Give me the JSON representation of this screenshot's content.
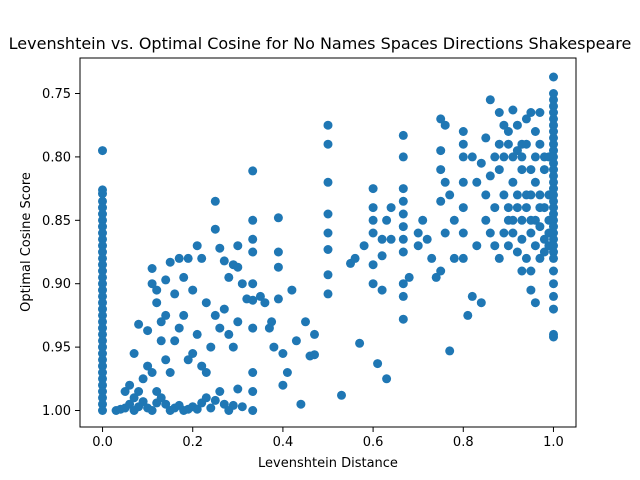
{
  "chart_data": {
    "type": "scatter",
    "title": "Levenshtein vs. Optimal Cosine for No Names Spaces Directions Shakespeare",
    "xlabel": "Levenshtein Distance",
    "ylabel": "Optimal Cosine Score",
    "xlim": [
      -0.05,
      1.05
    ],
    "ylim": [
      1.013,
      0.722
    ],
    "y_inverted": true,
    "xticks": [
      0.0,
      0.2,
      0.4,
      0.6,
      0.8,
      1.0
    ],
    "xtick_labels": [
      "0.0",
      "0.2",
      "0.4",
      "0.6",
      "0.8",
      "1.0"
    ],
    "yticks": [
      0.75,
      0.8,
      0.85,
      0.9,
      0.95,
      1.0
    ],
    "ytick_labels": [
      "0.75",
      "0.80",
      "0.85",
      "0.90",
      "0.95",
      "1.00"
    ],
    "grid": false,
    "marker_color": "#1f77b4",
    "points": [
      [
        0.0,
        0.795
      ],
      [
        0.0,
        0.826
      ],
      [
        0.0,
        0.829
      ],
      [
        0.0,
        0.835
      ],
      [
        0.0,
        0.84
      ],
      [
        0.0,
        0.845
      ],
      [
        0.0,
        0.85
      ],
      [
        0.0,
        0.855
      ],
      [
        0.0,
        0.86
      ],
      [
        0.0,
        0.865
      ],
      [
        0.0,
        0.87
      ],
      [
        0.0,
        0.875
      ],
      [
        0.0,
        0.88
      ],
      [
        0.0,
        0.885
      ],
      [
        0.0,
        0.89
      ],
      [
        0.0,
        0.895
      ],
      [
        0.0,
        0.9
      ],
      [
        0.0,
        0.905
      ],
      [
        0.0,
        0.91
      ],
      [
        0.0,
        0.915
      ],
      [
        0.0,
        0.92
      ],
      [
        0.0,
        0.925
      ],
      [
        0.0,
        0.93
      ],
      [
        0.0,
        0.935
      ],
      [
        0.0,
        0.94
      ],
      [
        0.0,
        0.945
      ],
      [
        0.0,
        0.95
      ],
      [
        0.0,
        0.955
      ],
      [
        0.0,
        0.96
      ],
      [
        0.0,
        0.965
      ],
      [
        0.0,
        0.97
      ],
      [
        0.0,
        0.975
      ],
      [
        0.0,
        0.98
      ],
      [
        0.0,
        0.985
      ],
      [
        0.0,
        0.99
      ],
      [
        0.0,
        0.995
      ],
      [
        0.0,
        1.0
      ],
      [
        0.03,
        1.0
      ],
      [
        0.04,
        0.999
      ],
      [
        0.05,
        0.998
      ],
      [
        0.06,
        0.995
      ],
      [
        0.07,
        1.0
      ],
      [
        0.08,
        0.997
      ],
      [
        0.05,
        0.985
      ],
      [
        0.06,
        0.98
      ],
      [
        0.07,
        0.99
      ],
      [
        0.08,
        0.985
      ],
      [
        0.09,
        0.993
      ],
      [
        0.1,
        0.998
      ],
      [
        0.11,
        1.0
      ],
      [
        0.12,
        0.994
      ],
      [
        0.07,
        0.955
      ],
      [
        0.08,
        0.932
      ],
      [
        0.1,
        0.937
      ],
      [
        0.09,
        0.975
      ],
      [
        0.1,
        0.965
      ],
      [
        0.11,
        0.97
      ],
      [
        0.12,
        0.985
      ],
      [
        0.13,
        0.99
      ],
      [
        0.14,
        0.995
      ],
      [
        0.15,
        1.0
      ],
      [
        0.16,
        0.998
      ],
      [
        0.17,
        0.996
      ],
      [
        0.18,
        1.0
      ],
      [
        0.19,
        0.999
      ],
      [
        0.2,
        0.997
      ],
      [
        0.21,
        0.999
      ],
      [
        0.22,
        0.994
      ],
      [
        0.23,
        0.99
      ],
      [
        0.24,
        0.998
      ],
      [
        0.25,
        0.992
      ],
      [
        0.26,
        0.985
      ],
      [
        0.27,
        0.995
      ],
      [
        0.28,
        1.0
      ],
      [
        0.29,
        0.996
      ],
      [
        0.3,
        0.983
      ],
      [
        0.31,
        0.997
      ],
      [
        0.11,
        0.888
      ],
      [
        0.11,
        0.9
      ],
      [
        0.12,
        0.905
      ],
      [
        0.12,
        0.915
      ],
      [
        0.13,
        0.93
      ],
      [
        0.14,
        0.925
      ],
      [
        0.13,
        0.945
      ],
      [
        0.14,
        0.96
      ],
      [
        0.15,
        0.97
      ],
      [
        0.16,
        0.945
      ],
      [
        0.17,
        0.935
      ],
      [
        0.18,
        0.925
      ],
      [
        0.19,
        0.96
      ],
      [
        0.2,
        0.955
      ],
      [
        0.21,
        0.94
      ],
      [
        0.22,
        0.965
      ],
      [
        0.23,
        0.97
      ],
      [
        0.24,
        0.95
      ],
      [
        0.25,
        0.925
      ],
      [
        0.26,
        0.935
      ],
      [
        0.27,
        0.92
      ],
      [
        0.28,
        0.94
      ],
      [
        0.29,
        0.95
      ],
      [
        0.3,
        0.93
      ],
      [
        0.31,
        0.9
      ],
      [
        0.32,
        0.912
      ],
      [
        0.14,
        0.897
      ],
      [
        0.15,
        0.883
      ],
      [
        0.16,
        0.908
      ],
      [
        0.17,
        0.88
      ],
      [
        0.18,
        0.895
      ],
      [
        0.19,
        0.88
      ],
      [
        0.2,
        0.905
      ],
      [
        0.21,
        0.87
      ],
      [
        0.22,
        0.88
      ],
      [
        0.23,
        0.915
      ],
      [
        0.25,
        0.835
      ],
      [
        0.25,
        0.857
      ],
      [
        0.26,
        0.872
      ],
      [
        0.27,
        0.882
      ],
      [
        0.28,
        0.895
      ],
      [
        0.29,
        0.885
      ],
      [
        0.3,
        0.87
      ],
      [
        0.3,
        0.887
      ],
      [
        0.333,
        0.811
      ],
      [
        0.333,
        0.85
      ],
      [
        0.333,
        0.865
      ],
      [
        0.333,
        0.875
      ],
      [
        0.333,
        0.9
      ],
      [
        0.333,
        0.913
      ],
      [
        0.333,
        0.935
      ],
      [
        0.333,
        0.97
      ],
      [
        0.333,
        0.985
      ],
      [
        0.333,
        1.0
      ],
      [
        0.35,
        0.91
      ],
      [
        0.36,
        0.915
      ],
      [
        0.37,
        0.935
      ],
      [
        0.375,
        0.93
      ],
      [
        0.38,
        0.95
      ],
      [
        0.39,
        0.848
      ],
      [
        0.39,
        0.875
      ],
      [
        0.39,
        0.887
      ],
      [
        0.39,
        0.912
      ],
      [
        0.4,
        0.955
      ],
      [
        0.4,
        0.98
      ],
      [
        0.41,
        0.97
      ],
      [
        0.42,
        0.905
      ],
      [
        0.43,
        0.945
      ],
      [
        0.44,
        0.995
      ],
      [
        0.45,
        0.93
      ],
      [
        0.46,
        0.957
      ],
      [
        0.47,
        0.94
      ],
      [
        0.47,
        0.956
      ],
      [
        0.5,
        0.775
      ],
      [
        0.5,
        0.79
      ],
      [
        0.5,
        0.82
      ],
      [
        0.5,
        0.845
      ],
      [
        0.5,
        0.86
      ],
      [
        0.5,
        0.873
      ],
      [
        0.5,
        0.893
      ],
      [
        0.5,
        0.908
      ],
      [
        0.53,
        0.988
      ],
      [
        0.55,
        0.884
      ],
      [
        0.56,
        0.88
      ],
      [
        0.57,
        0.947
      ],
      [
        0.58,
        0.87
      ],
      [
        0.6,
        0.825
      ],
      [
        0.6,
        0.84
      ],
      [
        0.6,
        0.85
      ],
      [
        0.6,
        0.86
      ],
      [
        0.6,
        0.885
      ],
      [
        0.6,
        0.9
      ],
      [
        0.61,
        0.963
      ],
      [
        0.62,
        0.865
      ],
      [
        0.62,
        0.878
      ],
      [
        0.62,
        0.905
      ],
      [
        0.63,
        0.975
      ],
      [
        0.63,
        0.85
      ],
      [
        0.64,
        0.84
      ],
      [
        0.64,
        0.865
      ],
      [
        0.667,
        0.783
      ],
      [
        0.667,
        0.8
      ],
      [
        0.667,
        0.825
      ],
      [
        0.667,
        0.835
      ],
      [
        0.667,
        0.845
      ],
      [
        0.667,
        0.855
      ],
      [
        0.667,
        0.865
      ],
      [
        0.667,
        0.875
      ],
      [
        0.667,
        0.9
      ],
      [
        0.667,
        0.91
      ],
      [
        0.667,
        0.928
      ],
      [
        0.68,
        0.895
      ],
      [
        0.7,
        0.87
      ],
      [
        0.7,
        0.86
      ],
      [
        0.71,
        0.85
      ],
      [
        0.72,
        0.865
      ],
      [
        0.73,
        0.88
      ],
      [
        0.74,
        0.895
      ],
      [
        0.75,
        0.89
      ],
      [
        0.76,
        0.82
      ],
      [
        0.76,
        0.86
      ],
      [
        0.77,
        0.83
      ],
      [
        0.77,
        0.953
      ],
      [
        0.78,
        0.85
      ],
      [
        0.78,
        0.88
      ],
      [
        0.75,
        0.795
      ],
      [
        0.75,
        0.81
      ],
      [
        0.75,
        0.835
      ],
      [
        0.75,
        0.77
      ],
      [
        0.76,
        0.775
      ],
      [
        0.8,
        0.78
      ],
      [
        0.8,
        0.79
      ],
      [
        0.8,
        0.8
      ],
      [
        0.8,
        0.82
      ],
      [
        0.8,
        0.84
      ],
      [
        0.8,
        0.86
      ],
      [
        0.8,
        0.88
      ],
      [
        0.81,
        0.925
      ],
      [
        0.82,
        0.91
      ],
      [
        0.83,
        0.87
      ],
      [
        0.84,
        0.915
      ],
      [
        0.85,
        0.785
      ],
      [
        0.86,
        0.755
      ],
      [
        0.87,
        0.8
      ],
      [
        0.88,
        0.765
      ],
      [
        0.89,
        0.775
      ],
      [
        0.9,
        0.78
      ],
      [
        0.91,
        0.763
      ],
      [
        0.92,
        0.775
      ],
      [
        0.93,
        0.79
      ],
      [
        0.94,
        0.77
      ],
      [
        0.95,
        0.765
      ],
      [
        0.96,
        0.78
      ],
      [
        0.97,
        0.765
      ],
      [
        0.82,
        0.8
      ],
      [
        0.83,
        0.82
      ],
      [
        0.84,
        0.805
      ],
      [
        0.85,
        0.83
      ],
      [
        0.86,
        0.815
      ],
      [
        0.87,
        0.84
      ],
      [
        0.88,
        0.81
      ],
      [
        0.89,
        0.83
      ],
      [
        0.9,
        0.85
      ],
      [
        0.91,
        0.82
      ],
      [
        0.92,
        0.84
      ],
      [
        0.93,
        0.81
      ],
      [
        0.94,
        0.83
      ],
      [
        0.95,
        0.85
      ],
      [
        0.96,
        0.82
      ],
      [
        0.97,
        0.84
      ],
      [
        0.98,
        0.8
      ],
      [
        0.99,
        0.83
      ],
      [
        0.85,
        0.85
      ],
      [
        0.86,
        0.86
      ],
      [
        0.87,
        0.87
      ],
      [
        0.88,
        0.88
      ],
      [
        0.89,
        0.86
      ],
      [
        0.9,
        0.87
      ],
      [
        0.91,
        0.86
      ],
      [
        0.92,
        0.875
      ],
      [
        0.93,
        0.865
      ],
      [
        0.94,
        0.88
      ],
      [
        0.95,
        0.86
      ],
      [
        0.96,
        0.87
      ],
      [
        0.97,
        0.855
      ],
      [
        0.98,
        0.865
      ],
      [
        0.99,
        0.86
      ],
      [
        0.88,
        0.79
      ],
      [
        0.89,
        0.8
      ],
      [
        0.9,
        0.79
      ],
      [
        0.91,
        0.8
      ],
      [
        0.92,
        0.795
      ],
      [
        0.93,
        0.8
      ],
      [
        0.94,
        0.79
      ],
      [
        0.95,
        0.81
      ],
      [
        0.96,
        0.8
      ],
      [
        0.97,
        0.79
      ],
      [
        0.98,
        0.81
      ],
      [
        0.99,
        0.8
      ],
      [
        0.9,
        0.84
      ],
      [
        0.91,
        0.85
      ],
      [
        0.92,
        0.83
      ],
      [
        0.93,
        0.85
      ],
      [
        0.94,
        0.84
      ],
      [
        0.95,
        0.83
      ],
      [
        0.96,
        0.85
      ],
      [
        0.97,
        0.83
      ],
      [
        0.98,
        0.84
      ],
      [
        0.99,
        0.85
      ],
      [
        0.95,
        0.89
      ],
      [
        0.95,
        0.905
      ],
      [
        0.96,
        0.915
      ],
      [
        0.93,
        0.89
      ],
      [
        0.97,
        0.88
      ],
      [
        0.98,
        0.875
      ],
      [
        0.99,
        0.87
      ],
      [
        1.0,
        0.737
      ],
      [
        1.0,
        0.75
      ],
      [
        1.0,
        0.755
      ],
      [
        1.0,
        0.76
      ],
      [
        1.0,
        0.765
      ],
      [
        1.0,
        0.77
      ],
      [
        1.0,
        0.775
      ],
      [
        1.0,
        0.78
      ],
      [
        1.0,
        0.785
      ],
      [
        1.0,
        0.79
      ],
      [
        1.0,
        0.795
      ],
      [
        1.0,
        0.8
      ],
      [
        1.0,
        0.805
      ],
      [
        1.0,
        0.81
      ],
      [
        1.0,
        0.815
      ],
      [
        1.0,
        0.82
      ],
      [
        1.0,
        0.825
      ],
      [
        1.0,
        0.83
      ],
      [
        1.0,
        0.835
      ],
      [
        1.0,
        0.84
      ],
      [
        1.0,
        0.845
      ],
      [
        1.0,
        0.85
      ],
      [
        1.0,
        0.855
      ],
      [
        1.0,
        0.86
      ],
      [
        1.0,
        0.865
      ],
      [
        1.0,
        0.87
      ],
      [
        1.0,
        0.875
      ],
      [
        1.0,
        0.88
      ],
      [
        1.0,
        0.89
      ],
      [
        1.0,
        0.9
      ],
      [
        1.0,
        0.91
      ],
      [
        1.0,
        0.92
      ],
      [
        1.0,
        0.94
      ],
      [
        1.0,
        0.942
      ]
    ]
  }
}
